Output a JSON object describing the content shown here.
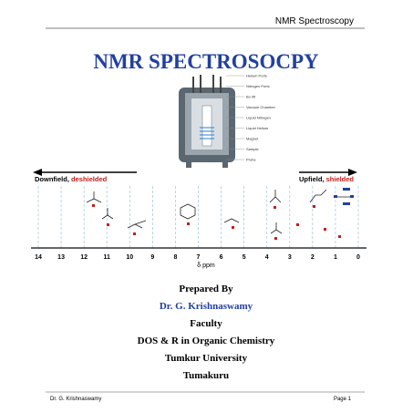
{
  "header": {
    "running_title": "NMR Spectroscopy"
  },
  "title": "NMR SPECTROSOCPY",
  "diagram": {
    "labels": [
      "Helium Ports",
      "Nitrogen Ports",
      "Bo lift",
      "Vacuum Chamber",
      "Liquid Nitrogen",
      "Liquid Helium",
      "Magnet",
      "Sample",
      "Probe"
    ]
  },
  "scale": {
    "downfield": {
      "term": "Downfield,",
      "meaning": "deshielded"
    },
    "upfield": {
      "term": "Upfield,",
      "meaning": "shielded"
    },
    "ticks": [
      14,
      13,
      12,
      11,
      10,
      9,
      8,
      7,
      6,
      5,
      4,
      3,
      2,
      1,
      0
    ],
    "unit": "δ ppm"
  },
  "credits": {
    "prepared": "Prepared By",
    "author": "Dr. G. Krishnaswamy",
    "role": "Faculty",
    "department": "DOS & R in Organic Chemistry",
    "university": "Tumkur University",
    "place": "Tumakuru"
  },
  "footer": {
    "author": "Dr. G. Krishnaswamy",
    "page": "Page 1"
  }
}
